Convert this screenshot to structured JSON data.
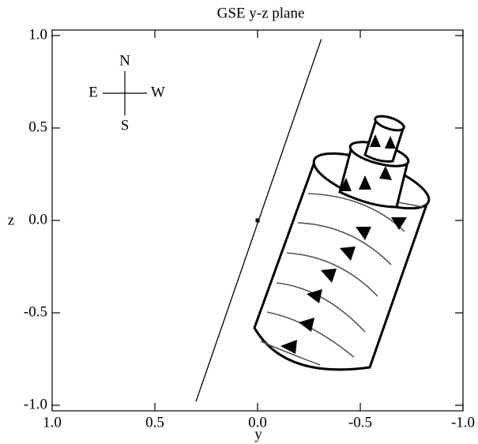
{
  "chart_data": {
    "type": "line",
    "title": "GSE y-z plane",
    "x_label": "y",
    "y_label": "z",
    "xlim": [
      1.0,
      -1.0
    ],
    "ylim": [
      -1.03,
      1.03
    ],
    "xticks": [
      {
        "value": 1,
        "label": "1.0"
      },
      0.5,
      {
        "value": 0,
        "label": "0.0"
      },
      -0.5,
      {
        "value": -1,
        "label": "-1.0"
      }
    ],
    "yticks": [
      {
        "value": -1,
        "label": "-1.0"
      },
      -0.5,
      {
        "value": 0,
        "label": "0.0"
      },
      0.5,
      {
        "value": 1,
        "label": "1.0"
      }
    ],
    "line": {
      "x": [
        0.3,
        -0.31
      ],
      "values": [
        -0.98,
        0.98
      ]
    },
    "point": {
      "x": 0,
      "y": 0
    },
    "compass": {
      "north": "N",
      "south": "S",
      "east": "E",
      "west": "W"
    }
  }
}
